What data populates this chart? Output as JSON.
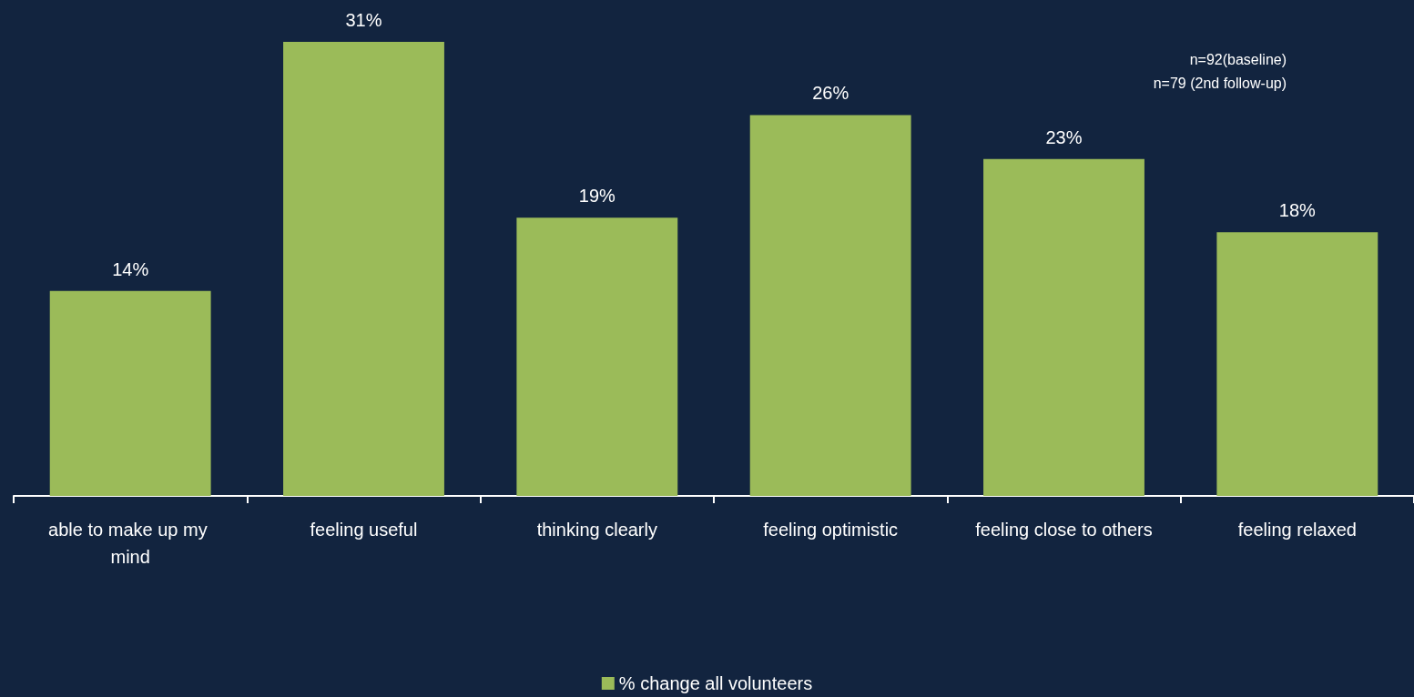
{
  "chart_data": {
    "type": "bar",
    "categories": [
      "able to make up my mind",
      "feeling useful",
      "thinking clearly",
      "feeling optimistic",
      "feeling close to others",
      "feeling relaxed"
    ],
    "series": [
      {
        "name": "% change all volunteers",
        "color": "#9bbb59",
        "values": [
          14,
          31,
          19,
          26,
          23,
          18
        ],
        "value_labels": [
          "14%",
          "31%",
          "19%",
          "26%",
          "23%",
          "18%"
        ]
      }
    ],
    "grid": false,
    "legend": "bottom",
    "annotations": [
      "n=92(baseline)",
      "n=79 (2nd follow-up)"
    ]
  }
}
